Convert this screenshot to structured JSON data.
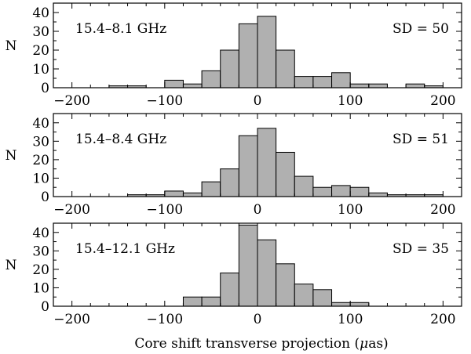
{
  "chart_data": [
    {
      "type": "bar",
      "label": "15.4–8.1 GHz",
      "sd": "SD = 50",
      "bins": [
        -160,
        -140,
        -120,
        -100,
        -80,
        -60,
        -40,
        -20,
        0,
        20,
        40,
        60,
        80,
        100,
        120,
        140,
        160,
        180
      ],
      "bin_width": 20,
      "values": [
        1,
        1,
        0,
        4,
        2,
        9,
        20,
        34,
        38,
        20,
        6,
        6,
        8,
        2,
        2,
        0,
        2,
        1
      ],
      "ylabel": "N",
      "ylim": [
        0,
        45
      ],
      "yticks": [
        0,
        10,
        20,
        30,
        40
      ],
      "xlim": [
        -220,
        220
      ],
      "xticks": [
        -200,
        -100,
        0,
        100,
        200
      ]
    },
    {
      "type": "bar",
      "label": "15.4–8.4 GHz",
      "sd": "SD = 51",
      "bins": [
        -140,
        -120,
        -100,
        -80,
        -60,
        -40,
        -20,
        0,
        20,
        40,
        60,
        80,
        100,
        120,
        140,
        160,
        180
      ],
      "bin_width": 20,
      "values": [
        1,
        1,
        3,
        2,
        8,
        15,
        33,
        37,
        24,
        11,
        5,
        6,
        5,
        2,
        1,
        1,
        1
      ],
      "ylabel": "N",
      "ylim": [
        0,
        45
      ],
      "yticks": [
        0,
        10,
        20,
        30,
        40
      ],
      "xlim": [
        -220,
        220
      ],
      "xticks": [
        -200,
        -100,
        0,
        100,
        200
      ]
    },
    {
      "type": "bar",
      "label": "15.4–12.1 GHz",
      "sd": "SD = 35",
      "bins": [
        -80,
        -60,
        -40,
        -20,
        0,
        20,
        40,
        60,
        80,
        100
      ],
      "bin_width": 20,
      "values": [
        5,
        5,
        18,
        44,
        36,
        23,
        12,
        9,
        2,
        2
      ],
      "ylabel": "N",
      "ylim": [
        0,
        45
      ],
      "yticks": [
        0,
        10,
        20,
        30,
        40
      ],
      "xlim": [
        -220,
        220
      ],
      "xticks": [
        -200,
        -100,
        0,
        100,
        200
      ]
    }
  ],
  "xlabel_prefix": "Core shift transverse projection (",
  "xlabel_mu": "μ",
  "xlabel_suffix": "as)",
  "colors": {
    "bar_fill": "#b0b0b0",
    "stroke": "#000000"
  }
}
